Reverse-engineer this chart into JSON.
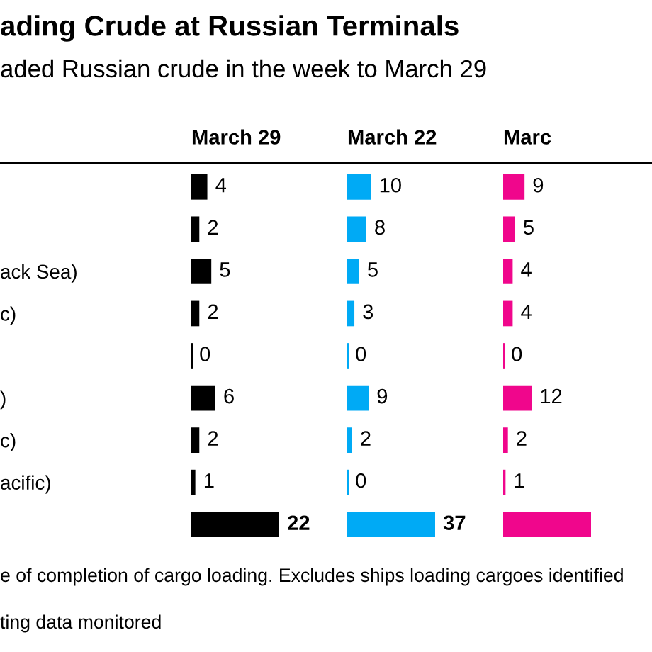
{
  "chart_data": [
    {
      "type": "other",
      "title": "ading Crude at Russian Terminals",
      "subtitle": "aded Russian crude in the week to March 29",
      "annotations": [
        "e of completion of cargo loading. Excludes ships loading cargoes identified",
        "ting data monitored"
      ]
    },
    {
      "type": "bar",
      "orientation": "horizontal",
      "title": "March 29",
      "categories": [
        null,
        null,
        "ack Sea)",
        "c)",
        null,
        ")",
        "c)",
        "acific)",
        null
      ],
      "values": [
        4,
        2,
        5,
        2,
        0,
        6,
        2,
        1,
        22
      ],
      "color": "#000000",
      "data_labels": true,
      "tick_labels": "y"
    },
    {
      "type": "bar",
      "orientation": "horizontal",
      "title": "March 22",
      "values": [
        10,
        8,
        5,
        3,
        0,
        9,
        2,
        0,
        37
      ],
      "color": "#00aaf5",
      "data_labels": true,
      "tick_labels": false
    },
    {
      "type": "bar",
      "orientation": "horizontal",
      "title": "Marc",
      "values": [
        9,
        5,
        4,
        4,
        0,
        12,
        2,
        1,
        37
      ],
      "value_labels": [
        "9",
        "5",
        "4",
        "4",
        "0",
        "12",
        "2",
        "1",
        null
      ],
      "color": "#f0068c",
      "tick_labels": false
    }
  ]
}
